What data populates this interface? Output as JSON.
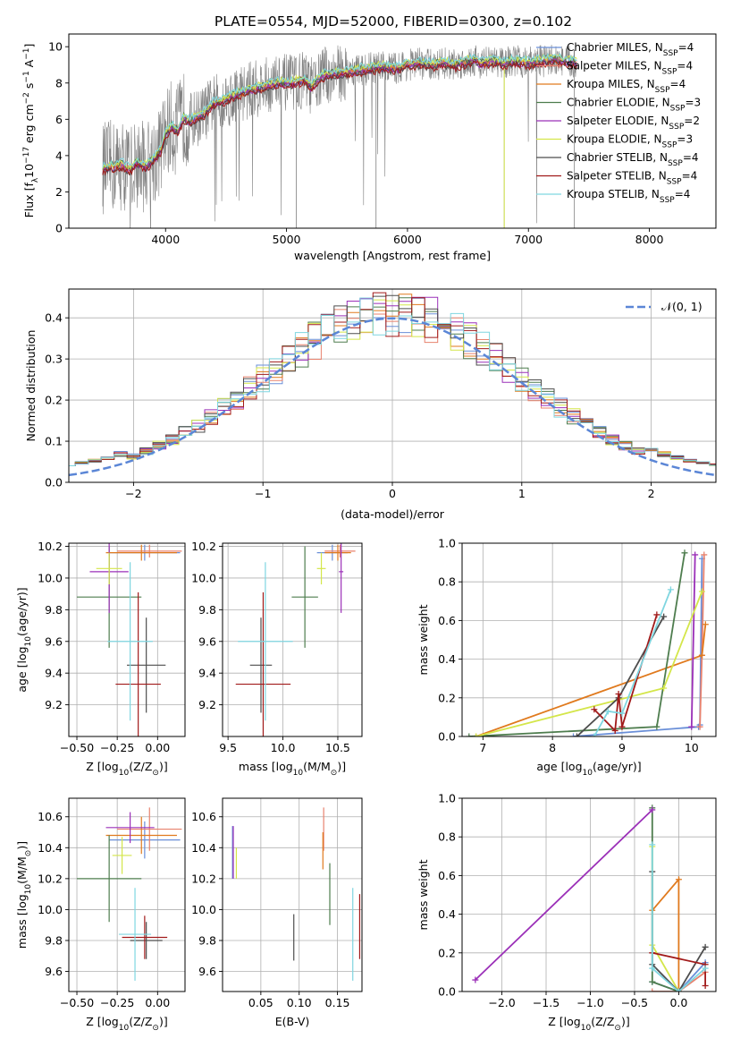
{
  "figure_title": "PLATE=0554, MJD=52000, FIBERID=0300, z=0.102",
  "colors": {
    "chabrier_miles": "#6a8fd8",
    "salpeter_miles": "#e8826e",
    "kroupa_miles": "#e07a1e",
    "chabrier_elodie": "#4e7d4e",
    "salpeter_elodie": "#9b30b8",
    "kroupa_elodie": "#d4e64a",
    "chabrier_stelib": "#4d4d4d",
    "salpeter_stelib": "#a11a1a",
    "kroupa_stelib": "#7fd6e0",
    "gaussian": "#5b86d6",
    "data": "#808080",
    "grid": "#b0b0b0"
  },
  "chart_data": [
    {
      "id": "spectrum",
      "type": "line",
      "title": "PLATE=0554, MJD=52000, FIBERID=0300, z=0.102",
      "xlabel": "wavelength [Angstrom, rest frame]",
      "ylabel_main": "Flux [f",
      "ylabel_sub": "λ",
      "ylabel_rest": "10",
      "ylabel_exp": "−17",
      "ylabel_tail": " erg cm",
      "ylabel_exp2": "−2",
      "ylabel_tail2": " s",
      "ylabel_exp3": "−1",
      "ylabel_tail3": " A",
      "ylabel_exp4": "−1",
      "ylabel_end": "]",
      "xlim": [
        3200,
        8550
      ],
      "ylim": [
        0,
        10.7
      ],
      "xticks": [
        "4000",
        "5000",
        "6000",
        "7000",
        "8000"
      ],
      "xtick_values": [
        4000,
        5000,
        6000,
        7000,
        8000
      ],
      "yticks": [
        "0",
        "2",
        "4",
        "6",
        "8",
        "10"
      ],
      "ytick_values": [
        0,
        2,
        4,
        6,
        8,
        10
      ],
      "continuum": {
        "x": [
          3480,
          3560,
          3650,
          3700,
          3760,
          3840,
          3900,
          3960,
          4000,
          4050,
          4100,
          4150,
          4200,
          4300,
          4400,
          4500,
          4600,
          4700,
          4800,
          4860,
          4950,
          5050,
          5150,
          5200,
          5300,
          5400,
          5500,
          5600,
          5700,
          5800,
          5900,
          6000,
          6100,
          6200,
          6300,
          6400,
          6500,
          6563,
          6600,
          6700,
          6800,
          6900,
          7000,
          7100,
          7200,
          7300,
          7400
        ],
        "y": [
          3.3,
          3.4,
          3.5,
          3.2,
          3.6,
          3.4,
          3.8,
          4.3,
          5.2,
          5.6,
          5.4,
          6.1,
          5.9,
          6.2,
          6.9,
          7.1,
          7.4,
          7.6,
          7.8,
          7.9,
          8.0,
          8.0,
          8.2,
          7.8,
          8.4,
          8.5,
          8.6,
          8.7,
          8.8,
          8.9,
          8.8,
          9.0,
          9.1,
          9.0,
          9.1,
          9.0,
          9.2,
          9.3,
          9.1,
          9.2,
          9.1,
          9.2,
          9.1,
          9.2,
          9.3,
          9.2,
          9.1
        ]
      },
      "series": [
        {
          "name": "Chabrier MILES, N",
          "sub": "SSP",
          "suffix": "=4",
          "color_key": "chabrier_miles",
          "offset": 0.0
        },
        {
          "name": "Salpeter MILES, N",
          "sub": "SSP",
          "suffix": "=4",
          "color_key": "salpeter_miles",
          "offset": 0.05
        },
        {
          "name": "Kroupa MILES, N",
          "sub": "SSP",
          "suffix": "=4",
          "color_key": "kroupa_miles",
          "offset": -0.05
        },
        {
          "name": "Chabrier ELODIE, N",
          "sub": "SSP",
          "suffix": "=3",
          "color_key": "chabrier_elodie",
          "offset": 0.1
        },
        {
          "name": "Salpeter ELODIE, N",
          "sub": "SSP",
          "suffix": "=2",
          "color_key": "salpeter_elodie",
          "offset": -0.1
        },
        {
          "name": "Kroupa ELODIE, N",
          "sub": "SSP",
          "suffix": "=3",
          "color_key": "kroupa_elodie",
          "offset": 0.15
        },
        {
          "name": "Chabrier STELIB, N",
          "sub": "SSP",
          "suffix": "=4",
          "color_key": "chabrier_stelib",
          "offset": -0.15
        },
        {
          "name": "Salpeter STELIB, N",
          "sub": "SSP",
          "suffix": "=4",
          "color_key": "salpeter_stelib",
          "offset": -0.2
        },
        {
          "name": "Kroupa STELIB, N",
          "sub": "SSP",
          "suffix": "=4",
          "color_key": "kroupa_stelib",
          "offset": 0.2
        }
      ],
      "legend_location": "upper right"
    },
    {
      "id": "residuals",
      "type": "histogram",
      "xlabel": "(data-model)/error",
      "ylabel": "Normed distribution",
      "xlim": [
        -2.5,
        2.5
      ],
      "ylim": [
        0,
        0.47
      ],
      "xticks": [
        "−2",
        "−1",
        "0",
        "1",
        "2"
      ],
      "xtick_values": [
        -2,
        -1,
        0,
        1,
        2
      ],
      "yticks": [
        "0.0",
        "0.1",
        "0.2",
        "0.3",
        "0.4"
      ],
      "ytick_values": [
        0,
        0.1,
        0.2,
        0.3,
        0.4
      ],
      "bin_width": 0.1,
      "legend_label": "𝒩(0, 1)",
      "gaussian": {
        "mean": 0,
        "sigma": 1
      },
      "series_order": [
        "chabrier_miles",
        "salpeter_miles",
        "kroupa_miles",
        "chabrier_elodie",
        "salpeter_elodie",
        "kroupa_elodie",
        "chabrier_stelib",
        "salpeter_stelib",
        "kroupa_stelib"
      ],
      "salpeter_elodie_peak": {
        "x": 0.25,
        "y": 0.45
      }
    },
    {
      "id": "age_vs_z",
      "type": "errorbar",
      "xlabel": "Z [log",
      "xlabel_sub": "10",
      "xlabel_rest": "(Z/Z",
      "xlabel_sub2": "⊙",
      "xlabel_end": ")]",
      "ylabel": "age  [log",
      "ylabel_sub": "10",
      "ylabel_rest": "(age/yr)]",
      "xlim": [
        -0.55,
        0.17
      ],
      "ylim": [
        9.0,
        10.22
      ],
      "xticks": [
        "−0.50",
        "−0.25",
        "0.00"
      ],
      "xtick_values": [
        -0.5,
        -0.25,
        0.0
      ],
      "yticks": [
        "9.2",
        "9.4",
        "9.6",
        "9.8",
        "10.0",
        "10.2"
      ],
      "ytick_values": [
        9.2,
        9.4,
        9.6,
        9.8,
        10.0,
        10.2
      ],
      "points": [
        {
          "key": "chabrier_miles",
          "x": -0.08,
          "xerr": 0.22,
          "y": 10.16,
          "yerr": 0.05
        },
        {
          "key": "salpeter_miles",
          "x": -0.05,
          "xerr": 0.2,
          "y": 10.17,
          "yerr": 0.04
        },
        {
          "key": "kroupa_miles",
          "x": -0.1,
          "xerr": 0.22,
          "y": 10.16,
          "yerr": 0.05
        },
        {
          "key": "chabrier_elodie",
          "x": -0.3,
          "xerr": 0.2,
          "y": 9.88,
          "yerr": 0.32
        },
        {
          "key": "salpeter_elodie",
          "x": -0.3,
          "xerr": 0.12,
          "y": 10.04,
          "yerr": 0.26
        },
        {
          "key": "kroupa_elodie",
          "x": -0.3,
          "xerr": 0.08,
          "y": 10.06,
          "yerr": 0.1
        },
        {
          "key": "chabrier_stelib",
          "x": -0.07,
          "xerr": 0.12,
          "y": 9.45,
          "yerr": 0.3
        },
        {
          "key": "salpeter_stelib",
          "x": -0.12,
          "xerr": 0.14,
          "y": 9.33,
          "yerr": 0.58
        },
        {
          "key": "kroupa_stelib",
          "x": -0.17,
          "xerr": 0.14,
          "y": 9.6,
          "yerr": 0.5
        }
      ]
    },
    {
      "id": "age_vs_mass",
      "type": "errorbar",
      "xlabel": "mass [log",
      "xlabel_sub": "10",
      "xlabel_rest": "(M/M",
      "xlabel_sub2": "⊙",
      "xlabel_end": ")]",
      "xlim": [
        9.45,
        10.72
      ],
      "ylim": [
        9.0,
        10.22
      ],
      "xticks": [
        "9.5",
        "10.0",
        "10.5"
      ],
      "xtick_values": [
        9.5,
        10.0,
        10.5
      ],
      "yticks": [
        "9.2",
        "9.4",
        "9.6",
        "9.8",
        "10.0",
        "10.2"
      ],
      "ytick_values": [
        9.2,
        9.4,
        9.6,
        9.8,
        10.0,
        10.2
      ],
      "points": [
        {
          "key": "chabrier_miles",
          "x": 10.45,
          "xerr": 0.14,
          "y": 10.16,
          "yerr": 0.05
        },
        {
          "key": "salpeter_miles",
          "x": 10.52,
          "xerr": 0.14,
          "y": 10.17,
          "yerr": 0.04
        },
        {
          "key": "kroupa_miles",
          "x": 10.5,
          "xerr": 0.12,
          "y": 10.16,
          "yerr": 0.05
        },
        {
          "key": "chabrier_elodie",
          "x": 10.2,
          "xerr": 0.12,
          "y": 9.88,
          "yerr": 0.32
        },
        {
          "key": "salpeter_elodie",
          "x": 10.53,
          "xerr": 0.02,
          "y": 10.04,
          "yerr": 0.26
        },
        {
          "key": "kroupa_elodie",
          "x": 10.35,
          "xerr": 0.04,
          "y": 10.06,
          "yerr": 0.1
        },
        {
          "key": "chabrier_stelib",
          "x": 9.8,
          "xerr": 0.1,
          "y": 9.45,
          "yerr": 0.3
        },
        {
          "key": "salpeter_stelib",
          "x": 9.82,
          "xerr": 0.25,
          "y": 9.33,
          "yerr": 0.58
        },
        {
          "key": "kroupa_stelib",
          "x": 9.84,
          "xerr": 0.25,
          "y": 9.6,
          "yerr": 0.5
        }
      ]
    },
    {
      "id": "weight_vs_age",
      "type": "line",
      "xlabel": "age  [log",
      "xlabel_sub": "10",
      "xlabel_rest": "(age/yr)]",
      "ylabel": "mass weight",
      "xlim": [
        6.7,
        10.35
      ],
      "ylim": [
        0,
        1.0
      ],
      "xticks": [
        "7",
        "8",
        "9",
        "10"
      ],
      "xtick_values": [
        7,
        8,
        9,
        10
      ],
      "yticks": [
        "0.0",
        "0.2",
        "0.4",
        "0.6",
        "0.8",
        "1.0"
      ],
      "ytick_values": [
        0,
        0.2,
        0.4,
        0.6,
        0.8,
        1.0
      ],
      "series": [
        {
          "key": "chabrier_miles",
          "x": [
            8.3,
            10.1,
            10.12,
            10.15
          ],
          "y": [
            0.0,
            0.05,
            0.06,
            0.92
          ]
        },
        {
          "key": "salpeter_miles",
          "x": [
            10.12,
            10.15,
            10.18
          ],
          "y": [
            0.05,
            0.42,
            0.94
          ]
        },
        {
          "key": "kroupa_miles",
          "x": [
            6.9,
            10.15,
            10.2
          ],
          "y": [
            0.0,
            0.42,
            0.58
          ]
        },
        {
          "key": "chabrier_elodie",
          "x": [
            6.8,
            9.5,
            9.9
          ],
          "y": [
            0.0,
            0.05,
            0.95
          ]
        },
        {
          "key": "salpeter_elodie",
          "x": [
            10.0,
            10.05
          ],
          "y": [
            0.05,
            0.94
          ]
        },
        {
          "key": "kroupa_elodie",
          "x": [
            6.9,
            9.6,
            10.15
          ],
          "y": [
            0.0,
            0.25,
            0.75
          ]
        },
        {
          "key": "chabrier_stelib",
          "x": [
            8.35,
            8.95,
            9.6
          ],
          "y": [
            0.0,
            0.2,
            0.62
          ]
        },
        {
          "key": "salpeter_stelib",
          "x": [
            8.6,
            8.9,
            8.95,
            9.0,
            9.5
          ],
          "y": [
            0.14,
            0.03,
            0.22,
            0.05,
            0.63
          ]
        },
        {
          "key": "kroupa_stelib",
          "x": [
            8.6,
            8.8,
            9.0,
            9.7
          ],
          "y": [
            0.0,
            0.13,
            0.12,
            0.76
          ]
        }
      ]
    },
    {
      "id": "mass_vs_z",
      "type": "errorbar",
      "xlabel": "Z [log",
      "xlabel_sub": "10",
      "xlabel_rest": "(Z/Z",
      "xlabel_sub2": "⊙",
      "xlabel_end": ")]",
      "ylabel": "mass [log",
      "ylabel_sub": "10",
      "ylabel_rest": "(M/M",
      "ylabel_sub2": "⊙",
      "ylabel_end": ")]",
      "xlim": [
        -0.55,
        0.17
      ],
      "ylim": [
        9.47,
        10.72
      ],
      "xticks": [
        "−0.50",
        "−0.25",
        "0.00"
      ],
      "xtick_values": [
        -0.5,
        -0.25,
        0.0
      ],
      "yticks": [
        "9.6",
        "9.8",
        "10.0",
        "10.2",
        "10.4",
        "10.6"
      ],
      "ytick_values": [
        9.6,
        9.8,
        10.0,
        10.2,
        10.4,
        10.6
      ],
      "points": [
        {
          "key": "chabrier_miles",
          "x": -0.08,
          "xerr": 0.22,
          "y": 10.45,
          "yerr": 0.12
        },
        {
          "key": "salpeter_miles",
          "x": -0.05,
          "xerr": 0.2,
          "y": 10.52,
          "yerr": 0.14
        },
        {
          "key": "kroupa_miles",
          "x": -0.1,
          "xerr": 0.22,
          "y": 10.48,
          "yerr": 0.12
        },
        {
          "key": "chabrier_elodie",
          "x": -0.3,
          "xerr": 0.2,
          "y": 10.2,
          "yerr": 0.28
        },
        {
          "key": "salpeter_elodie",
          "x": -0.17,
          "xerr": 0.15,
          "y": 10.53,
          "yerr": 0.1
        },
        {
          "key": "kroupa_elodie",
          "x": -0.22,
          "xerr": 0.06,
          "y": 10.35,
          "yerr": 0.12
        },
        {
          "key": "chabrier_stelib",
          "x": -0.07,
          "xerr": 0.1,
          "y": 9.8,
          "yerr": 0.12
        },
        {
          "key": "salpeter_stelib",
          "x": -0.08,
          "xerr": 0.14,
          "y": 9.82,
          "yerr": 0.14
        },
        {
          "key": "kroupa_stelib",
          "x": -0.14,
          "xerr": 0.1,
          "y": 9.84,
          "yerr": 0.3
        }
      ]
    },
    {
      "id": "mass_vs_ebv",
      "type": "errorbar",
      "xlabel": "E(B-V)",
      "xlim": [
        0.0,
        0.182
      ],
      "ylim": [
        9.47,
        10.72
      ],
      "xticks": [
        "0.05",
        "0.10",
        "0.15"
      ],
      "xtick_values": [
        0.05,
        0.1,
        0.15
      ],
      "yticks": [
        "9.6",
        "9.8",
        "10.0",
        "10.2",
        "10.4",
        "10.6"
      ],
      "ytick_values": [
        9.6,
        9.8,
        10.0,
        10.2,
        10.4,
        10.6
      ],
      "points": [
        {
          "key": "chabrier_miles",
          "x": 0.013,
          "xerr": 0.0,
          "y": 10.37,
          "yerr": 0.17
        },
        {
          "key": "salpeter_miles",
          "x": 0.132,
          "xerr": 0.0,
          "y": 10.52,
          "yerr": 0.14
        },
        {
          "key": "kroupa_miles",
          "x": 0.131,
          "xerr": 0.0,
          "y": 10.38,
          "yerr": 0.12
        },
        {
          "key": "chabrier_elodie",
          "x": 0.14,
          "xerr": 0.0,
          "y": 10.1,
          "yerr": 0.2
        },
        {
          "key": "salpeter_elodie",
          "x": 0.014,
          "xerr": 0.0,
          "y": 10.37,
          "yerr": 0.17
        },
        {
          "key": "kroupa_elodie",
          "x": 0.018,
          "xerr": 0.0,
          "y": 10.3,
          "yerr": 0.1
        },
        {
          "key": "chabrier_stelib",
          "x": 0.093,
          "xerr": 0.0,
          "y": 9.82,
          "yerr": 0.15
        },
        {
          "key": "salpeter_stelib",
          "x": 0.179,
          "xerr": 0.0,
          "y": 9.89,
          "yerr": 0.21
        },
        {
          "key": "kroupa_stelib",
          "x": 0.17,
          "xerr": 0.0,
          "y": 9.84,
          "yerr": 0.3
        }
      ]
    },
    {
      "id": "weight_vs_z",
      "type": "line",
      "xlabel": "Z [log",
      "xlabel_sub": "10",
      "xlabel_rest": "(Z/Z",
      "xlabel_sub2": "⊙",
      "xlabel_end": ")]",
      "ylabel": "mass weight",
      "xlim": [
        -2.45,
        0.42
      ],
      "ylim": [
        0,
        1.0
      ],
      "xticks": [
        "−2.0",
        "−1.5",
        "−1.0",
        "−0.5",
        "0.0"
      ],
      "xtick_values": [
        -2.0,
        -1.5,
        -1.0,
        -0.5,
        0.0
      ],
      "yticks": [
        "0.0",
        "0.2",
        "0.4",
        "0.6",
        "0.8",
        "1.0"
      ],
      "ytick_values": [
        0,
        0.2,
        0.4,
        0.6,
        0.8,
        1.0
      ],
      "series": [
        {
          "key": "chabrier_miles",
          "x": [
            -0.3,
            0.0,
            0.3
          ],
          "y": [
            0.05,
            0.0,
            0.15
          ]
        },
        {
          "key": "salpeter_miles",
          "x": [
            -0.3,
            0.0,
            0.3
          ],
          "y": [
            0.0,
            0.0,
            0.1
          ]
        },
        {
          "key": "kroupa_miles",
          "x": [
            -0.3,
            0.0,
            0.0
          ],
          "y": [
            0.42,
            0.58,
            0.0
          ]
        },
        {
          "key": "chabrier_elodie",
          "x": [
            -0.3,
            -0.3,
            0.0
          ],
          "y": [
            0.95,
            0.05,
            0.0
          ]
        },
        {
          "key": "salpeter_elodie",
          "x": [
            -2.3,
            -0.3
          ],
          "y": [
            0.06,
            0.94
          ]
        },
        {
          "key": "kroupa_elodie",
          "x": [
            -0.3,
            -0.3,
            0.0
          ],
          "y": [
            0.75,
            0.24,
            0.0
          ]
        },
        {
          "key": "chabrier_stelib",
          "x": [
            -0.3,
            -0.3,
            0.0,
            0.3
          ],
          "y": [
            0.62,
            0.14,
            0.0,
            0.23
          ]
        },
        {
          "key": "salpeter_stelib",
          "x": [
            -0.3,
            0.3,
            0.3
          ],
          "y": [
            0.2,
            0.14,
            0.03
          ]
        },
        {
          "key": "kroupa_stelib",
          "x": [
            -0.3,
            -0.3,
            0.0,
            0.3
          ],
          "y": [
            0.76,
            0.12,
            0.0,
            0.12
          ]
        }
      ]
    }
  ]
}
